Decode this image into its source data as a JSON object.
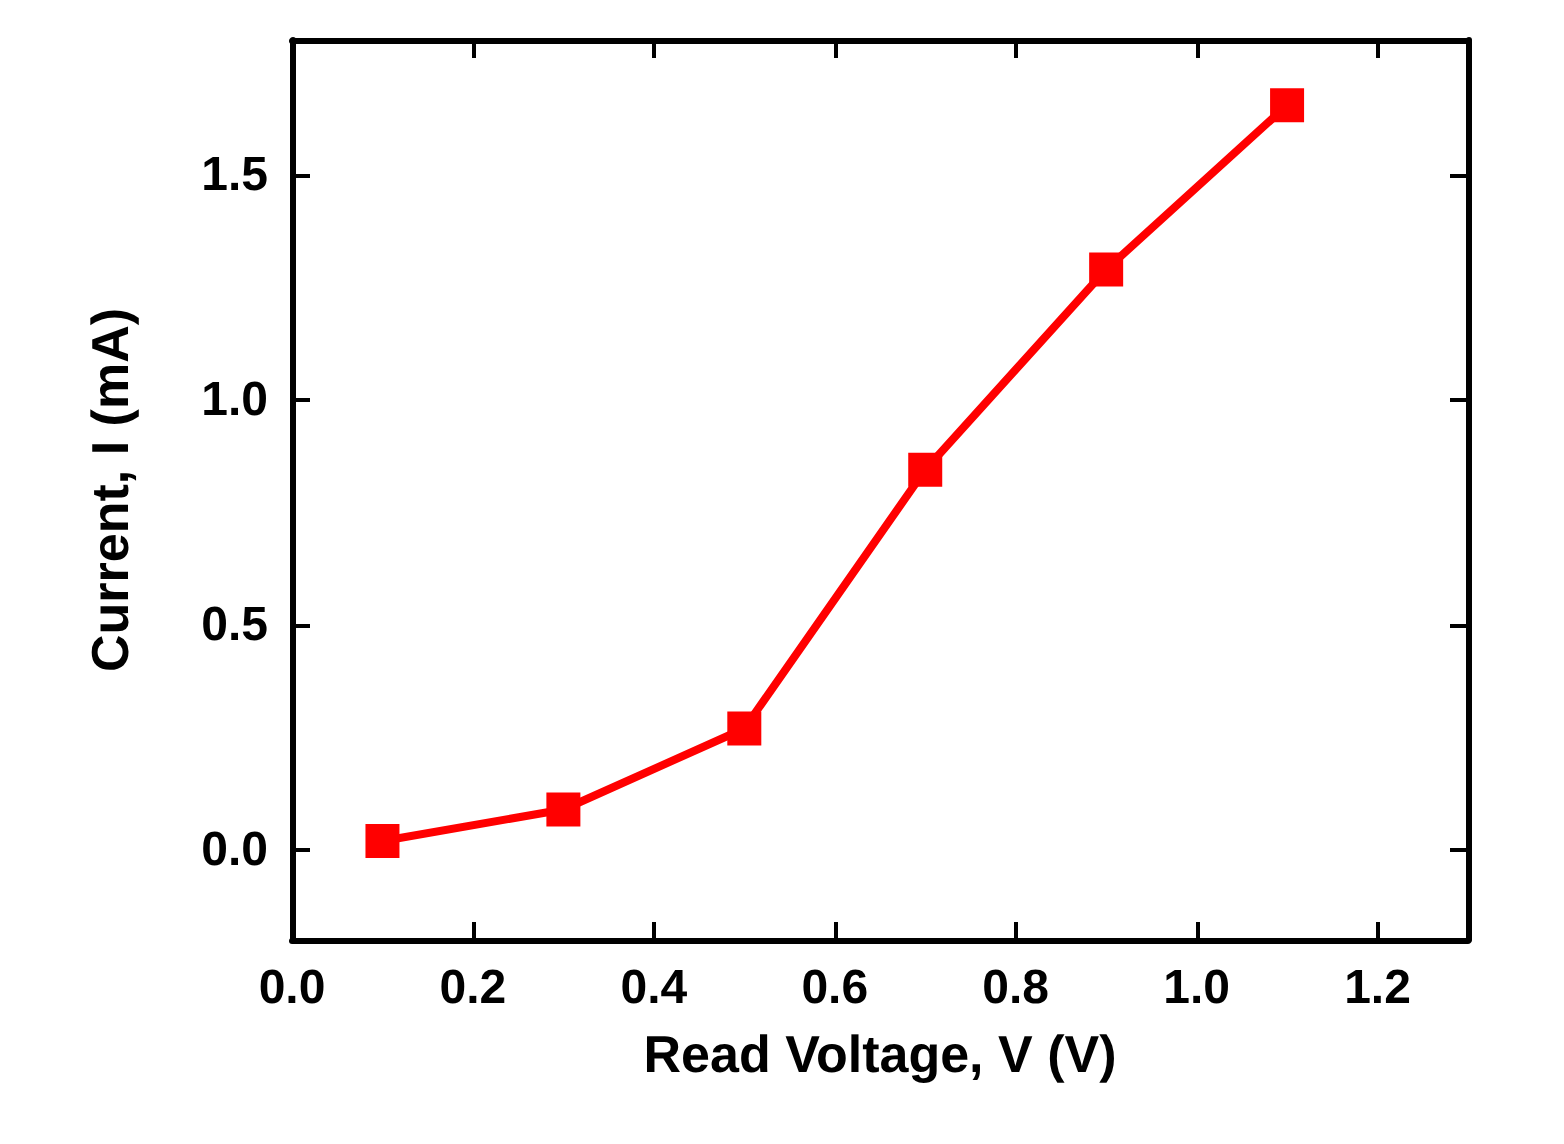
{
  "chart_data": {
    "type": "line",
    "xlabel": "Read Voltage, V (V)",
    "ylabel": "Current, I (mA)",
    "x": [
      0.1,
      0.3,
      0.5,
      0.7,
      0.9,
      1.1
    ],
    "series": [
      {
        "color": "#ff0000",
        "values": [
          0.02,
          0.09,
          0.27,
          0.845,
          1.29,
          1.655
        ]
      }
    ],
    "marker": "square",
    "line_style": "solid",
    "grid": false,
    "xlim": [
      0,
      1.3
    ],
    "ylim": [
      -0.2,
      1.8
    ],
    "xticks": [
      {
        "value": 0,
        "label": "0.0"
      },
      0.2,
      0.4,
      0.6,
      0.8,
      {
        "value": 1,
        "label": "1.0"
      },
      1.2
    ],
    "yticks": [
      {
        "value": 0,
        "label": "0.0"
      },
      0.5,
      {
        "value": 1,
        "label": "1.0"
      },
      1.5
    ]
  }
}
